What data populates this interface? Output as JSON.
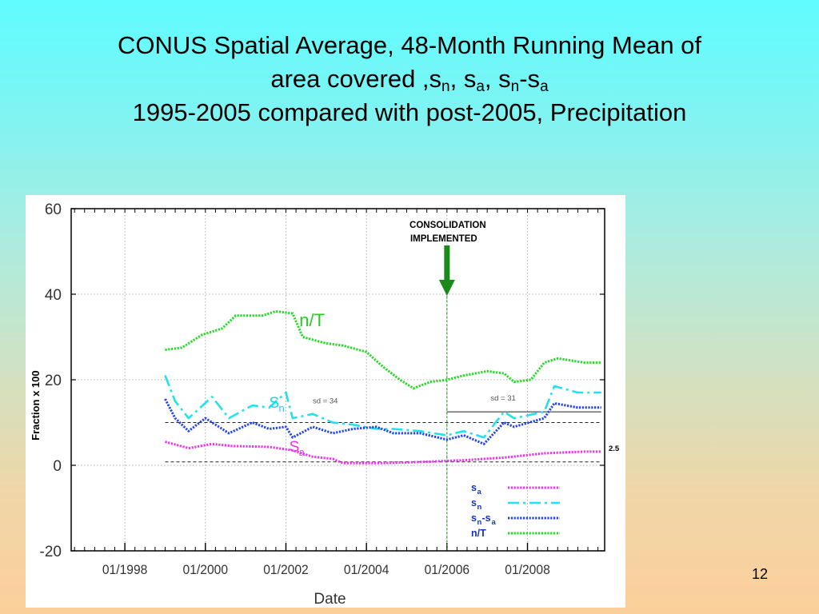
{
  "slide": {
    "title_line1": "CONUS Spatial Average, 48-Month Running Mean of",
    "title_line2_prefix": "area covered ,s",
    "title_line2_sn_sub": "n",
    "title_line2_mid1": ", s",
    "title_line2_sa_sub": "a",
    "title_line2_mid2": ", s",
    "title_line2_diff_sub1": "n",
    "title_line2_mid3": "-s",
    "title_line2_diff_sub2": "a",
    "title_line3": "1995-2005 compared with post-2005, Precipitation",
    "slide_number": "12",
    "background_top": "#5ffcff",
    "background_bottom": "#fbcf9a"
  },
  "chart_data": {
    "type": "line",
    "xlabel": "Date",
    "ylabel": "Fraction x 100",
    "x_tick_labels": [
      "01/1998",
      "01/2000",
      "01/2002",
      "01/2004",
      "01/2006",
      "01/2008"
    ],
    "xlim": [
      "1996-09",
      "2009-12"
    ],
    "ylim": [
      -20,
      60
    ],
    "y_ticks": [
      60,
      40,
      20,
      0,
      -20
    ],
    "grid": true,
    "series": [
      {
        "name": "n/T",
        "label": "n/T",
        "color": "#22dd22",
        "style": "dotted",
        "points": [
          [
            "1999-01",
            27
          ],
          [
            "1999-06",
            27.5
          ],
          [
            "1999-12",
            30.5
          ],
          [
            "2000-06",
            32
          ],
          [
            "2000-10",
            35
          ],
          [
            "2001-06",
            35
          ],
          [
            "2001-10",
            36
          ],
          [
            "2002-03",
            35.5
          ],
          [
            "2002-06",
            30
          ],
          [
            "2003-01",
            28.5
          ],
          [
            "2003-06",
            28
          ],
          [
            "2004-01",
            26.5
          ],
          [
            "2004-06",
            23
          ],
          [
            "2004-11",
            20
          ],
          [
            "2005-03",
            18
          ],
          [
            "2005-08",
            19.5
          ],
          [
            "2006-01",
            20
          ],
          [
            "2006-06",
            21
          ],
          [
            "2007-01",
            22
          ],
          [
            "2007-06",
            21.5
          ],
          [
            "2007-09",
            19.5
          ],
          [
            "2008-02",
            20
          ],
          [
            "2008-06",
            24
          ],
          [
            "2008-10",
            25
          ],
          [
            "2009-06",
            24
          ],
          [
            "2009-11",
            24
          ]
        ]
      },
      {
        "name": "sn",
        "label": "Sn",
        "label_sub": "n",
        "color": "#22e0f0",
        "style": "dashdot",
        "points": [
          [
            "1999-01",
            21
          ],
          [
            "1999-04",
            15
          ],
          [
            "1999-08",
            11
          ],
          [
            "2000-03",
            16
          ],
          [
            "2000-08",
            11
          ],
          [
            "2001-03",
            14
          ],
          [
            "2001-08",
            13.5
          ],
          [
            "2002-01",
            17
          ],
          [
            "2002-03",
            11
          ],
          [
            "2002-09",
            12
          ],
          [
            "2003-03",
            10
          ],
          [
            "2003-09",
            9.5
          ],
          [
            "2004-04",
            8.5
          ],
          [
            "2004-09",
            8.5
          ],
          [
            "2005-05",
            8
          ],
          [
            "2006-01",
            7
          ],
          [
            "2006-06",
            8
          ],
          [
            "2006-12",
            6.5
          ],
          [
            "2007-06",
            12.5
          ],
          [
            "2007-09",
            11
          ],
          [
            "2008-06",
            12.5
          ],
          [
            "2008-09",
            18.5
          ],
          [
            "2009-04",
            17
          ],
          [
            "2009-11",
            17
          ]
        ]
      },
      {
        "name": "sn-sa",
        "label": "sn-sa",
        "color": "#2244ee",
        "style": "dotted",
        "points": [
          [
            "1999-01",
            15.5
          ],
          [
            "1999-04",
            11
          ],
          [
            "1999-08",
            8
          ],
          [
            "2000-01",
            11
          ],
          [
            "2000-08",
            7.5
          ],
          [
            "2001-03",
            10
          ],
          [
            "2001-08",
            8.5
          ],
          [
            "2002-01",
            9
          ],
          [
            "2002-03",
            6.5
          ],
          [
            "2002-09",
            9
          ],
          [
            "2003-03",
            7.5
          ],
          [
            "2003-09",
            8.5
          ],
          [
            "2004-04",
            9
          ],
          [
            "2004-09",
            7.5
          ],
          [
            "2005-05",
            7.5
          ],
          [
            "2006-01",
            6
          ],
          [
            "2006-06",
            7
          ],
          [
            "2006-12",
            5
          ],
          [
            "2007-06",
            10
          ],
          [
            "2007-09",
            9
          ],
          [
            "2008-06",
            11
          ],
          [
            "2008-09",
            14.5
          ],
          [
            "2009-04",
            13.5
          ],
          [
            "2009-11",
            13.5
          ]
        ]
      },
      {
        "name": "sa",
        "label": "Sa",
        "label_sub": "a",
        "color": "#ee33ee",
        "style": "dotted",
        "points": [
          [
            "1999-01",
            5.5
          ],
          [
            "1999-08",
            4
          ],
          [
            "2000-03",
            5
          ],
          [
            "2000-09",
            4.5
          ],
          [
            "2001-08",
            4.3
          ],
          [
            "2002-03",
            3.5
          ],
          [
            "2002-09",
            2
          ],
          [
            "2003-03",
            1.5
          ],
          [
            "2003-06",
            0.5
          ],
          [
            "2004-06",
            0.5
          ],
          [
            "2005-06",
            0.8
          ],
          [
            "2006-06",
            1.2
          ],
          [
            "2007-06",
            1.8
          ],
          [
            "2008-06",
            2.8
          ],
          [
            "2009-06",
            3.2
          ],
          [
            "2009-11",
            3.2
          ]
        ]
      }
    ],
    "reference_lines": [
      {
        "y": 10,
        "style": "dashed",
        "from": "1999-01",
        "to": "2009-11"
      },
      {
        "y": 0.8,
        "style": "dashed",
        "from": "1999-01",
        "to": "2009-11"
      },
      {
        "y": 12.5,
        "style": "solid",
        "from": "2006-01",
        "to": "2009-11"
      }
    ],
    "consolidation_date": "2006-01",
    "annotations": {
      "consolidation_line1": "CONSOLIDATION",
      "consolidation_line2": "IMPLEMENTED",
      "sd_left": "sd = 34",
      "sd_right": "sd = 31",
      "right_value": "2.5",
      "label_nT": "n/T",
      "label_sn_main": "S",
      "label_sn_sub": "n",
      "label_sa_main": "S",
      "label_sa_sub": "a",
      "arrow_color": "#1a8a1a"
    },
    "legend": {
      "placement": "bottom-right",
      "items": [
        {
          "main": "s",
          "sub": "a",
          "series": "sa"
        },
        {
          "main": "s",
          "sub": "n",
          "series": "sn"
        },
        {
          "main": "s",
          "sub": "n",
          "mid": "-s",
          "sub2": "a",
          "series": "sn-sa"
        },
        {
          "main": "n/T",
          "series": "n/T"
        }
      ],
      "text_color": "#1133cc"
    }
  }
}
